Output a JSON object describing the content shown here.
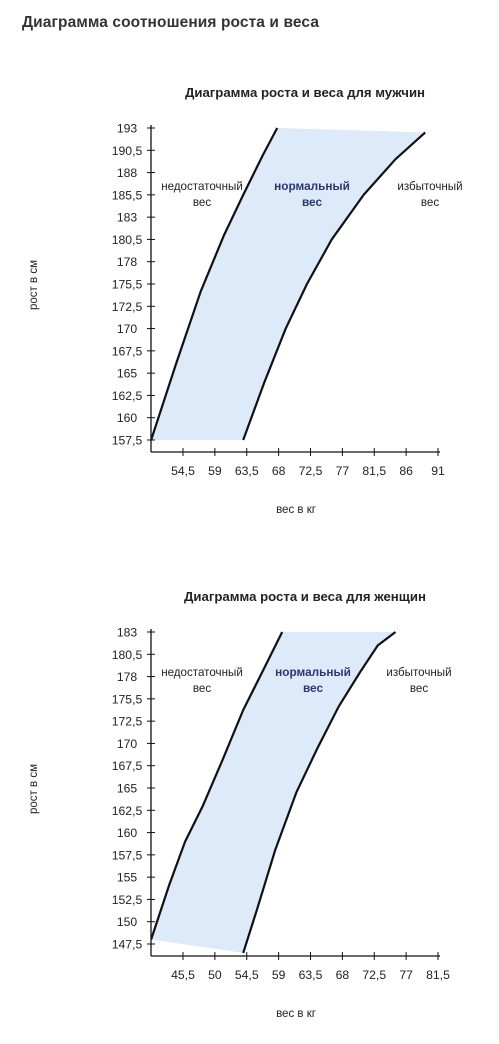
{
  "page": {
    "title": "Диаграмма соотношения роста и веса"
  },
  "colors": {
    "band": "#dceafa",
    "line": "#111111",
    "axis": "#111111",
    "normal_text": "#2b3770"
  },
  "chart_data": [
    {
      "type": "area",
      "title": "Диаграмма роста и веса для мужчин",
      "xlabel": "вес в кг",
      "ylabel": "рост в см",
      "xticks": [
        54.5,
        59,
        63.5,
        68,
        72.5,
        77,
        81.5,
        86,
        91
      ],
      "xtick_labels": [
        "54,5",
        "59",
        "63,5",
        "68",
        "72,5",
        "77",
        "81,5",
        "86",
        "91"
      ],
      "yticks": [
        157.5,
        160,
        162.5,
        165,
        167.5,
        170,
        172.5,
        175.5,
        178,
        180.5,
        183,
        185.5,
        188,
        190.5,
        193
      ],
      "ytick_labels": [
        "157,5",
        "160",
        "162,5",
        "165",
        "167,5",
        "170",
        "172,5",
        "175,5",
        "178",
        "180,5",
        "183",
        "185,5",
        "188",
        "190,5",
        "193"
      ],
      "zones": [
        {
          "lines": [
            "недостаточный",
            "вес"
          ],
          "emphasis": false
        },
        {
          "lines": [
            "нормальный",
            "вес"
          ],
          "emphasis": true
        },
        {
          "lines": [
            "избыточный",
            "вес"
          ],
          "emphasis": false
        }
      ],
      "series": [
        {
          "x": [
            50.0,
            53.5,
            57.0,
            60.3,
            63.0,
            65.8,
            67.8
          ],
          "y": [
            157.5,
            166.0,
            174.5,
            181.0,
            185.5,
            190.0,
            193.0
          ]
        },
        {
          "x": [
            63.0,
            66.0,
            69.0,
            72.0,
            75.5,
            80.0,
            84.5,
            89.0
          ],
          "y": [
            157.5,
            164.0,
            170.0,
            175.5,
            180.5,
            185.5,
            189.5,
            192.5
          ]
        }
      ]
    },
    {
      "type": "area",
      "title": "Диаграмма роста и веса для женщин",
      "xlabel": "вес в кг",
      "ylabel": "рост в см",
      "xticks": [
        45.5,
        50,
        54.5,
        59,
        63.5,
        68,
        72.5,
        77,
        81.5
      ],
      "xtick_labels": [
        "45,5",
        "50",
        "54,5",
        "59",
        "63,5",
        "68",
        "72,5",
        "77",
        "81,5"
      ],
      "yticks": [
        147.5,
        150,
        152.5,
        155,
        157.5,
        160,
        162.5,
        165,
        167.5,
        170,
        172.5,
        175.5,
        178,
        180.5,
        183
      ],
      "ytick_labels": [
        "147,5",
        "150",
        "152,5",
        "155",
        "157,5",
        "160",
        "162,5",
        "165",
        "167,5",
        "170",
        "172,5",
        "175,5",
        "178",
        "180,5",
        "183"
      ],
      "zones": [
        {
          "lines": [
            "недостаточный",
            "вес"
          ],
          "emphasis": false
        },
        {
          "lines": [
            "нормальный",
            "вес"
          ],
          "emphasis": true
        },
        {
          "lines": [
            "избыточный",
            "вес"
          ],
          "emphasis": false
        }
      ],
      "series": [
        {
          "x": [
            41.0,
            43.5,
            45.8,
            48.3,
            51.0,
            54.0,
            57.0,
            59.5
          ],
          "y": [
            148.0,
            154.0,
            159.0,
            163.0,
            168.0,
            174.0,
            179.0,
            183.0
          ]
        },
        {
          "x": [
            54.0,
            56.0,
            58.5,
            61.5,
            64.5,
            67.5,
            70.5,
            73.0,
            75.5
          ],
          "y": [
            146.5,
            151.5,
            158.0,
            164.5,
            169.5,
            174.5,
            178.5,
            181.5,
            183.0
          ]
        }
      ]
    }
  ]
}
